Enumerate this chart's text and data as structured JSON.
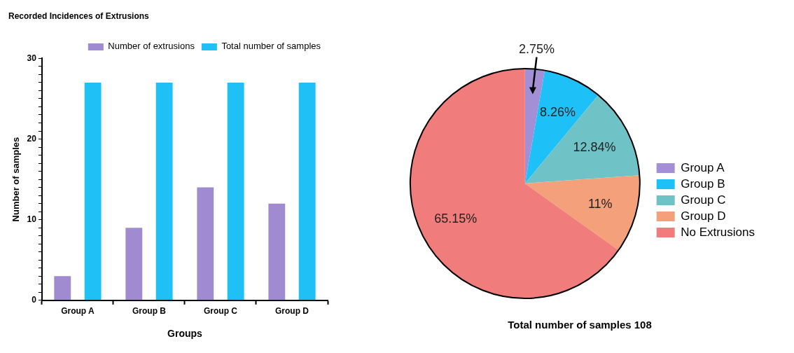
{
  "chart_data": [
    {
      "type": "bar",
      "title": "Recorded Incidences of Extrusions",
      "xlabel": "Groups",
      "ylabel": "Number of samples",
      "categories": [
        "Group A",
        "Group B",
        "Group C",
        "Group D"
      ],
      "series": [
        {
          "name": "Number of extrusions",
          "color": "#a08ad0",
          "values": [
            3,
            9,
            14,
            12
          ]
        },
        {
          "name": "Total number of samples",
          "color": "#1ec0f5",
          "values": [
            27,
            27,
            27,
            27
          ]
        }
      ],
      "ylim": [
        0,
        30
      ],
      "yticks": [
        0,
        {
          "value": 1,
          "label": null
        },
        {
          "value": 2,
          "label": null
        },
        {
          "value": 3,
          "label": null
        },
        {
          "value": 4,
          "label": null
        },
        {
          "value": 5,
          "label": null
        },
        {
          "value": 6,
          "label": null
        },
        {
          "value": 7,
          "label": null
        },
        {
          "value": 8,
          "label": null
        },
        {
          "value": 9,
          "label": null
        },
        10,
        {
          "value": 11,
          "label": null
        },
        {
          "value": 12,
          "label": null
        },
        {
          "value": 13,
          "label": null
        },
        {
          "value": 14,
          "label": null
        },
        {
          "value": 15,
          "label": null
        },
        {
          "value": 16,
          "label": null
        },
        {
          "value": 17,
          "label": null
        },
        {
          "value": 18,
          "label": null
        },
        {
          "value": 19,
          "label": null
        },
        20,
        {
          "value": 21,
          "label": null
        },
        {
          "value": 22,
          "label": null
        },
        {
          "value": 23,
          "label": null
        },
        {
          "value": 24,
          "label": null
        },
        {
          "value": 25,
          "label": null
        },
        {
          "value": 26,
          "label": null
        },
        {
          "value": 27,
          "label": null
        },
        {
          "value": 28,
          "label": null
        },
        {
          "value": 29,
          "label": null
        },
        30
      ],
      "legend": "top right"
    },
    {
      "type": "pie",
      "title": "Total number of samples 108",
      "categories": [
        "Group A",
        "Group B",
        "Group C",
        "Group D",
        "No Extrusions"
      ],
      "values": [
        2.75,
        8.26,
        12.84,
        11,
        65.15
      ],
      "colors": [
        "#a38fd6",
        "#1ec1f7",
        "#6fc3c7",
        "#f4a07a",
        "#f07c7c"
      ],
      "value_labels": [
        "2.75%",
        "8.26%",
        "12.84%",
        "11%",
        "65.15%"
      ],
      "legend": "right"
    }
  ]
}
